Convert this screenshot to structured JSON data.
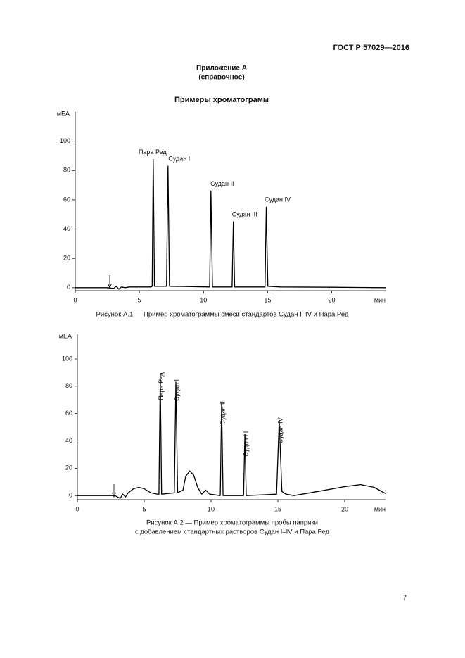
{
  "header": "ГОСТ Р 57029—2016",
  "appendix": {
    "title": "Приложение А",
    "note": "(справочное)"
  },
  "section_title": "Примеры хроматограмм",
  "chart_data": [
    {
      "type": "line",
      "y_label": "мЕА",
      "x_label": "мин",
      "color": "#000000",
      "xlim": [
        0,
        24.2
      ],
      "ylim": [
        -2,
        120
      ],
      "xticks": [
        0,
        5,
        10,
        15,
        20
      ],
      "yticks": [
        0,
        20,
        40,
        60,
        80,
        100
      ],
      "annotation_orientation": "horizontal",
      "x": [
        0,
        2.5,
        3.0,
        3.2,
        3.4,
        3.6,
        3.9,
        4.2,
        5.9,
        6.0,
        6.08,
        6.18,
        7.12,
        7.23,
        7.35,
        10.48,
        10.58,
        10.7,
        12.23,
        12.33,
        12.43,
        14.8,
        14.9,
        15.02,
        16,
        20,
        24.2
      ],
      "values": [
        0,
        0,
        -0.5,
        1,
        -1,
        0.5,
        0,
        0.5,
        0.5,
        1,
        87.5,
        1,
        1,
        83,
        1,
        0.5,
        66,
        0.5,
        0.5,
        45,
        0.5,
        0.5,
        55,
        1,
        0.5,
        0.3,
        0
      ],
      "annotations": [
        {
          "text": "Пара Ред",
          "x": 6.08,
          "y": 87.5
        },
        {
          "text": "Судан I",
          "x": 7.23,
          "y": 83
        },
        {
          "text": "Судан II",
          "x": 10.58,
          "y": 66
        },
        {
          "text": "Судан III",
          "x": 12.33,
          "y": 45
        },
        {
          "text": "Судан IV",
          "x": 14.9,
          "y": 55
        }
      ],
      "caption": [
        "Рисунок А.1 — Пример хроматограммы смеси стандартов Судан I–IV и Пара Ред"
      ]
    },
    {
      "type": "line",
      "y_label": "мЕА",
      "x_label": "мин",
      "color": "#000000",
      "xlim": [
        0,
        23.05
      ],
      "ylim": [
        -3,
        118
      ],
      "xticks": [
        0,
        5,
        10,
        15,
        20
      ],
      "yticks": [
        0,
        20,
        40,
        60,
        80,
        100
      ],
      "annotation_orientation": "vertical",
      "x": [
        0,
        2.8,
        3.2,
        3.4,
        3.6,
        3.8,
        4.2,
        4.6,
        5.0,
        5.5,
        6.0,
        6.1,
        6.2,
        6.3,
        7.25,
        7.37,
        7.5,
        7.9,
        8.1,
        8.4,
        8.7,
        9.0,
        9.3,
        9.6,
        9.9,
        10.69,
        10.79,
        10.9,
        12.43,
        12.53,
        12.63,
        14.9,
        15.1,
        15.3,
        15.6,
        16.2,
        18,
        20,
        21.2,
        22.2,
        23.05
      ],
      "values": [
        0,
        0,
        -2,
        1,
        -1,
        2,
        5,
        6,
        5,
        2,
        1,
        1,
        88,
        1,
        2,
        83,
        2,
        4,
        14,
        18,
        15,
        6,
        1,
        4,
        1,
        0,
        67,
        0,
        0,
        45,
        0,
        1,
        55,
        3,
        1,
        0,
        3,
        6.5,
        8,
        6,
        1.5
      ],
      "annotations": [
        {
          "text": "Пара Ред",
          "x": 6.2,
          "y": 88
        },
        {
          "text": "Судан I",
          "x": 7.37,
          "y": 83
        },
        {
          "text": "Судан II",
          "x": 10.79,
          "y": 67
        },
        {
          "text": "Судан III",
          "x": 12.53,
          "y": 45
        },
        {
          "text": "Судан IV",
          "x": 15.1,
          "y": 55
        }
      ],
      "caption": [
        "Рисунок А.2 — Пример хроматограммы пробы паприки",
        "с добавлением стандартных растворов Судан I–IV и Пара Ред"
      ]
    }
  ],
  "page_number": "7"
}
